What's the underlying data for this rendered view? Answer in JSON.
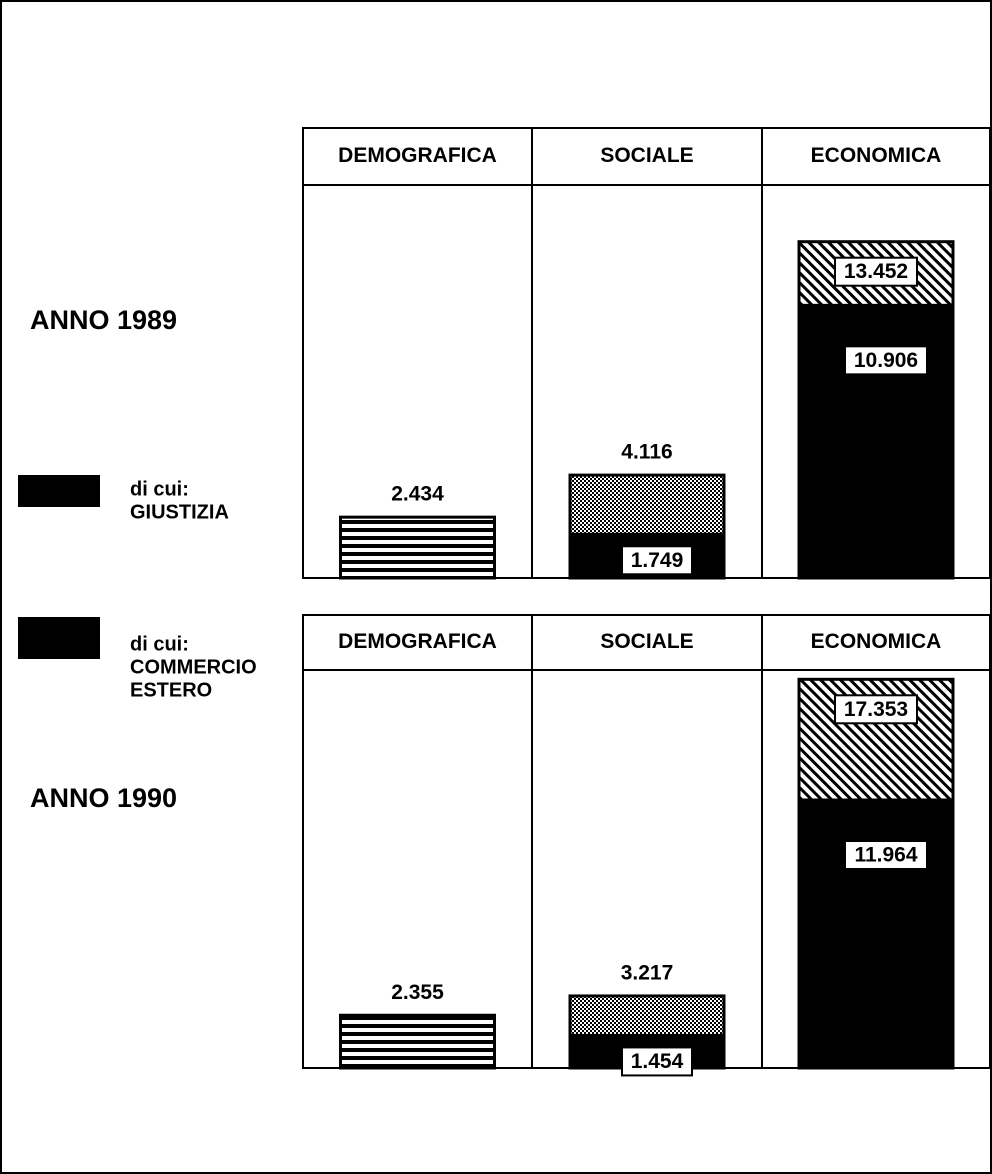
{
  "legend": [
    {
      "lines": [
        "di cui:",
        "GIUSTIZIA"
      ]
    },
    {
      "lines": [
        "di cui:",
        "COMMERCIO",
        "ESTERO"
      ]
    }
  ],
  "chart_data": [
    {
      "type": "bar",
      "title": "ANNO 1989",
      "categories": [
        "DEMOGRAFICA",
        "SOCIALE",
        "ECONOMICA"
      ],
      "values": [
        2434,
        4116,
        13452
      ],
      "value_labels": [
        "2.434",
        "4.116",
        "13.452"
      ],
      "subsets": {
        "values": [
          null,
          1749,
          10906
        ],
        "value_labels": [
          null,
          "1.749",
          "10.906"
        ]
      }
    },
    {
      "type": "bar",
      "title": "ANNO 1990",
      "categories": [
        "DEMOGRAFICA",
        "SOCIALE",
        "ECONOMICA"
      ],
      "values": [
        2355,
        3217,
        17353
      ],
      "value_labels": [
        "2.355",
        "3.217",
        "17.353"
      ],
      "subsets": {
        "values": [
          null,
          1454,
          11964
        ],
        "value_labels": [
          null,
          "1.454",
          "11.964"
        ]
      }
    }
  ]
}
